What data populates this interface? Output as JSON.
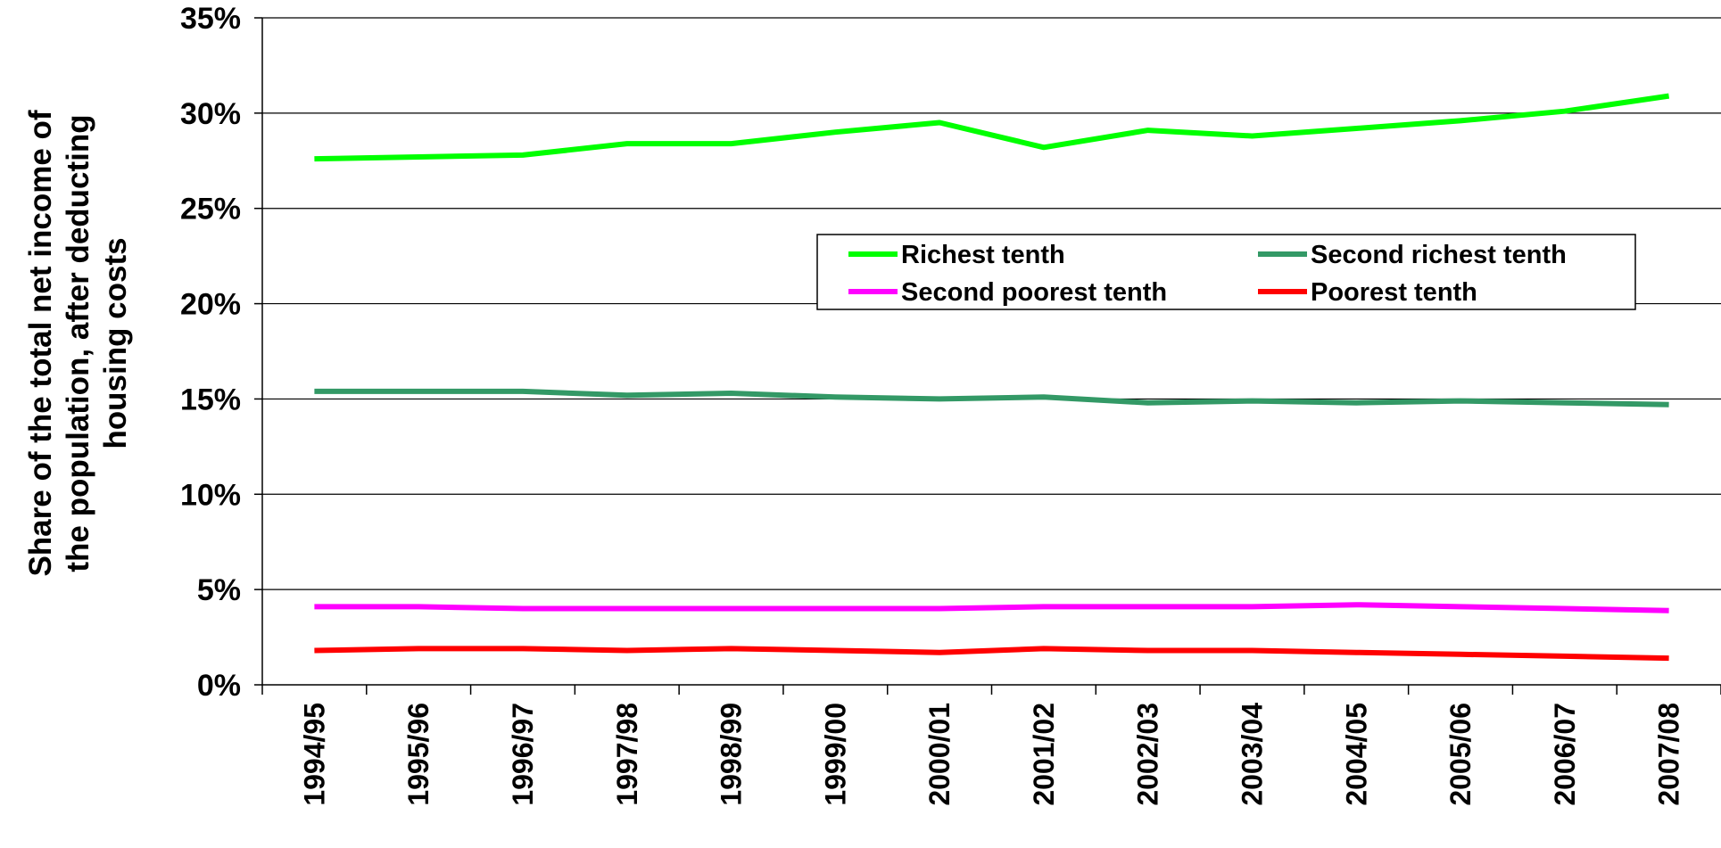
{
  "chart_data": {
    "type": "line",
    "title": "",
    "ylabel_lines": [
      "Share of the total net income of",
      "the population, after deducting",
      "housing costs"
    ],
    "xlabel": "",
    "categories": [
      "1994/95",
      "1995/96",
      "1996/97",
      "1997/98",
      "1998/99",
      "1999/00",
      "2000/01",
      "2001/02",
      "2002/03",
      "2003/04",
      "2004/05",
      "2005/06",
      "2006/07",
      "2007/08"
    ],
    "y_ticks": [
      "0%",
      "5%",
      "10%",
      "15%",
      "20%",
      "25%",
      "30%",
      "35%"
    ],
    "ylim": [
      0,
      35
    ],
    "grid": "horizontal",
    "legend_placement": "center-right",
    "series": [
      {
        "name": "Richest tenth",
        "color": "#00ff00",
        "values": [
          27.6,
          27.7,
          27.8,
          28.4,
          28.4,
          29.0,
          29.5,
          28.2,
          29.1,
          28.8,
          29.2,
          29.6,
          30.1,
          30.9
        ]
      },
      {
        "name": "Second richest tenth",
        "color": "#339966",
        "values": [
          15.4,
          15.4,
          15.4,
          15.2,
          15.3,
          15.1,
          15.0,
          15.1,
          14.8,
          14.9,
          14.8,
          14.9,
          14.8,
          14.7
        ]
      },
      {
        "name": "Second poorest tenth",
        "color": "#ff00ff",
        "values": [
          4.1,
          4.1,
          4.0,
          4.0,
          4.0,
          4.0,
          4.0,
          4.1,
          4.1,
          4.1,
          4.2,
          4.1,
          4.0,
          3.9
        ]
      },
      {
        "name": "Poorest tenth",
        "color": "#ff0000",
        "values": [
          1.8,
          1.9,
          1.9,
          1.8,
          1.9,
          1.8,
          1.7,
          1.9,
          1.8,
          1.8,
          1.7,
          1.6,
          1.5,
          1.4
        ]
      }
    ]
  }
}
